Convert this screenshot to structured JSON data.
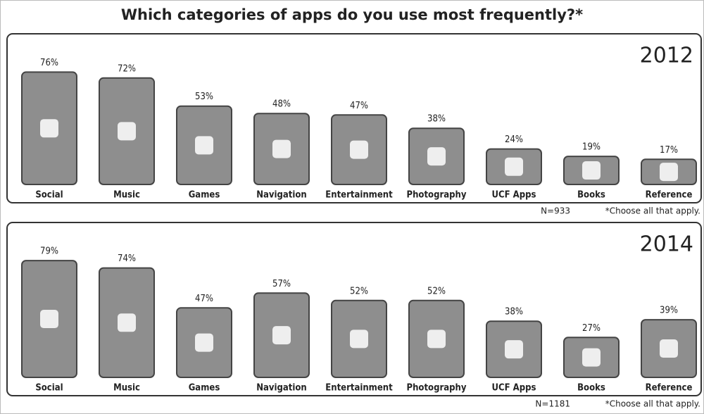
{
  "title": "Which categories of apps do you use most frequently?*",
  "chart_data": [
    {
      "type": "bar",
      "subtitle": "2012",
      "note": "N=933",
      "footnote": "*Choose all that apply.",
      "color": "#8e8e8e",
      "categories": [
        "Social",
        "Music",
        "Games",
        "Navigation",
        "Entertainment",
        "Photography",
        "UCF Apps",
        "Books",
        "Reference"
      ],
      "values": [
        76,
        72,
        53,
        48,
        47,
        38,
        24,
        19,
        17
      ],
      "value_labels": [
        "76%",
        "72%",
        "53%",
        "48%",
        "47%",
        "38%",
        "24%",
        "19%",
        "17%"
      ]
    },
    {
      "type": "bar",
      "subtitle": "2014",
      "note": "N=1181",
      "footnote": "*Choose all that apply.",
      "color": "#8e8e8e",
      "categories": [
        "Social",
        "Music",
        "Games",
        "Navigation",
        "Entertainment",
        "Photography",
        "UCF Apps",
        "Books",
        "Reference"
      ],
      "values": [
        79,
        74,
        47,
        57,
        52,
        52,
        38,
        27,
        39
      ],
      "value_labels": [
        "79%",
        "74%",
        "47%",
        "57%",
        "52%",
        "52%",
        "38%",
        "27%",
        "39%"
      ]
    }
  ]
}
